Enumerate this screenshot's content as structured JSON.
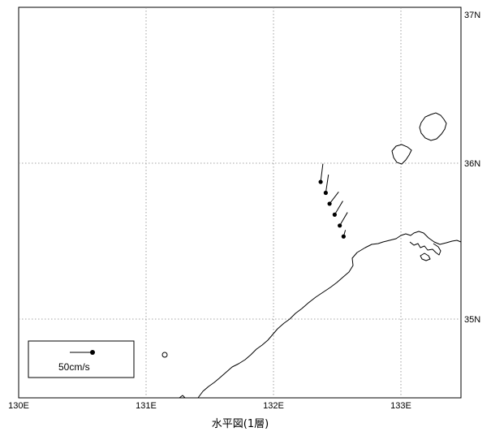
{
  "title": "水平図(1層)",
  "x_ticks": [
    "130E",
    "131E",
    "132E",
    "133E"
  ],
  "y_ticks": [
    "35N",
    "36N",
    "37N"
  ],
  "scale_label": "50cm/s",
  "current_vectors": [
    {
      "lon": 132.37,
      "lat": 35.88,
      "u": 0.05,
      "v": 0.4
    },
    {
      "lon": 132.41,
      "lat": 35.81,
      "u": 0.06,
      "v": 0.4
    },
    {
      "lon": 132.44,
      "lat": 35.74,
      "u": 0.2,
      "v": 0.26
    },
    {
      "lon": 132.48,
      "lat": 35.67,
      "u": 0.18,
      "v": 0.3
    },
    {
      "lon": 132.52,
      "lat": 35.6,
      "u": 0.17,
      "v": 0.29
    },
    {
      "lon": 132.55,
      "lat": 35.53,
      "u": 0.04,
      "v": 0.14
    }
  ]
}
